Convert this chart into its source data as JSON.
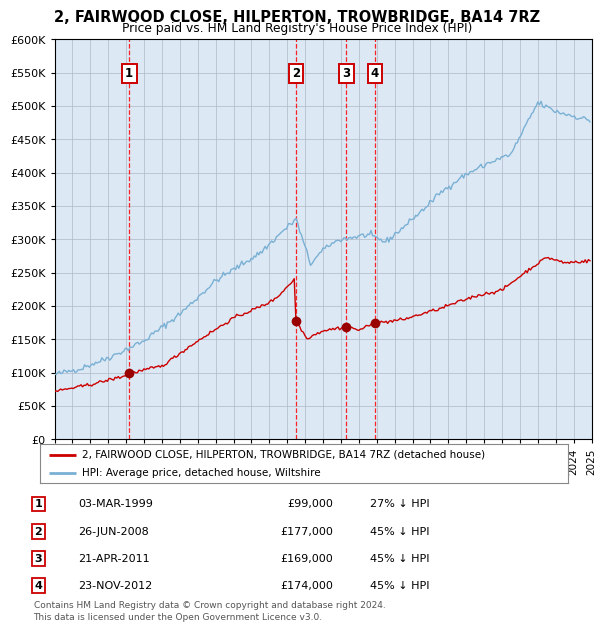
{
  "title": "2, FAIRWOOD CLOSE, HILPERTON, TROWBRIDGE, BA14 7RZ",
  "subtitle": "Price paid vs. HM Land Registry's House Price Index (HPI)",
  "background_color": "#dce9f5",
  "x_start_year": 1995,
  "x_end_year": 2025,
  "y_min": 0,
  "y_max": 600000,
  "y_ticks": [
    0,
    50000,
    100000,
    150000,
    200000,
    250000,
    300000,
    350000,
    400000,
    450000,
    500000,
    550000,
    600000
  ],
  "sales": [
    {
      "label": "1",
      "date": "03-MAR-1999",
      "year": 1999.17,
      "price": 99000,
      "pct": "27% ↓ HPI"
    },
    {
      "label": "2",
      "date": "26-JUN-2008",
      "year": 2008.49,
      "price": 177000,
      "pct": "45% ↓ HPI"
    },
    {
      "label": "3",
      "date": "21-APR-2011",
      "year": 2011.3,
      "price": 169000,
      "pct": "45% ↓ HPI"
    },
    {
      "label": "4",
      "date": "23-NOV-2012",
      "year": 2012.9,
      "price": 174000,
      "pct": "45% ↓ HPI"
    }
  ],
  "legend_line1": "2, FAIRWOOD CLOSE, HILPERTON, TROWBRIDGE, BA14 7RZ (detached house)",
  "legend_line2": "HPI: Average price, detached house, Wiltshire",
  "footer": "Contains HM Land Registry data © Crown copyright and database right 2024.\nThis data is licensed under the Open Government Licence v3.0.",
  "red_line_color": "#cc0000",
  "blue_line_color": "#7ab0d4",
  "marker_color": "#990000"
}
